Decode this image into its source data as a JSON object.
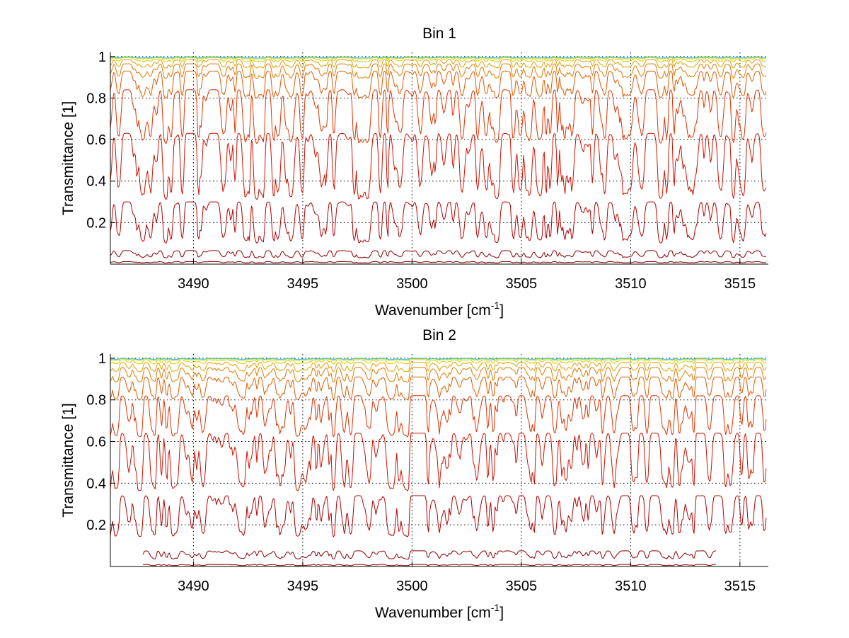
{
  "chart_data": [
    {
      "type": "line",
      "title": "Bin 1",
      "xlabel_base": "Wavenumber [cm",
      "xlabel_sup": "-1",
      "xlabel_close": "]",
      "ylabel": "Transmittance [1]",
      "xlim": [
        3486.2,
        3516.3
      ],
      "ylim": [
        0,
        1.02
      ],
      "xticks": [
        3490,
        3495,
        3500,
        3505,
        3510,
        3515
      ],
      "xtick_labels": [
        "3490",
        "3495",
        "3500",
        "3505",
        "3510",
        "3515"
      ],
      "yticks": [
        0.2,
        0.4,
        0.6,
        0.8,
        1
      ],
      "ytick_labels": [
        "0.2",
        "0.4",
        "0.6",
        "0.8",
        "1"
      ],
      "grid": true,
      "grid_style": "dotted",
      "x_range": [
        3486.2,
        3516.2
      ],
      "series": [
        {
          "baseline": 0.065,
          "depth": 0.035,
          "color": "#8b0000"
        },
        {
          "baseline": 0.012,
          "depth": 0.006,
          "color": "#8b0000"
        },
        {
          "baseline": 0.3,
          "depth": 0.2,
          "color": "#b00000"
        },
        {
          "baseline": 0.63,
          "depth": 0.32,
          "color": "#cc1100"
        },
        {
          "baseline": 0.84,
          "depth": 0.26,
          "color": "#dd3300"
        },
        {
          "baseline": 0.93,
          "depth": 0.13,
          "color": "#e05a00"
        },
        {
          "baseline": 0.965,
          "depth": 0.07,
          "color": "#e07b00"
        },
        {
          "baseline": 0.985,
          "depth": 0.04,
          "color": "#e0a000"
        },
        {
          "baseline": 0.995,
          "depth": 0.02,
          "color": "#d8c800"
        },
        {
          "baseline": 0.998,
          "depth": 0.01,
          "color": "#b8dd20"
        },
        {
          "baseline": 0.999,
          "depth": 0.006,
          "color": "#33bbdd"
        }
      ]
    },
    {
      "type": "line",
      "title": "Bin 2",
      "xlabel_base": "Wavenumber [cm",
      "xlabel_sup": "-1",
      "xlabel_close": "]",
      "ylabel": "Transmittance [1]",
      "xlim": [
        3486.2,
        3516.3
      ],
      "ylim": [
        0,
        1.02
      ],
      "xticks": [
        3490,
        3495,
        3500,
        3505,
        3510,
        3515
      ],
      "xtick_labels": [
        "3490",
        "3495",
        "3500",
        "3505",
        "3510",
        "3515"
      ],
      "yticks": [
        0.2,
        0.4,
        0.6,
        0.8,
        1
      ],
      "ytick_labels": [
        "0.2",
        "0.4",
        "0.6",
        "0.8",
        "1"
      ],
      "grid": true,
      "grid_style": "dotted",
      "x_range": [
        3486.2,
        3516.2
      ],
      "series": [
        {
          "baseline": 0.075,
          "depth": 0.04,
          "color": "#8b0000",
          "x_range": [
            3487.7,
            3513.9
          ]
        },
        {
          "baseline": 0.01,
          "depth": 0.006,
          "color": "#8b0000",
          "x_range": [
            3487.7,
            3513.9
          ]
        },
        {
          "baseline": 0.34,
          "depth": 0.2,
          "color": "#b00000"
        },
        {
          "baseline": 0.64,
          "depth": 0.28,
          "color": "#cc1100"
        },
        {
          "baseline": 0.82,
          "depth": 0.2,
          "color": "#dd3300"
        },
        {
          "baseline": 0.91,
          "depth": 0.11,
          "color": "#e05a00"
        },
        {
          "baseline": 0.955,
          "depth": 0.07,
          "color": "#e07b00"
        },
        {
          "baseline": 0.98,
          "depth": 0.045,
          "color": "#e0a000"
        },
        {
          "baseline": 0.993,
          "depth": 0.02,
          "color": "#d8c800"
        },
        {
          "baseline": 0.998,
          "depth": 0.01,
          "color": "#b8dd20"
        },
        {
          "baseline": 1.0,
          "depth": 0.006,
          "color": "#33bbdd"
        }
      ]
    }
  ]
}
